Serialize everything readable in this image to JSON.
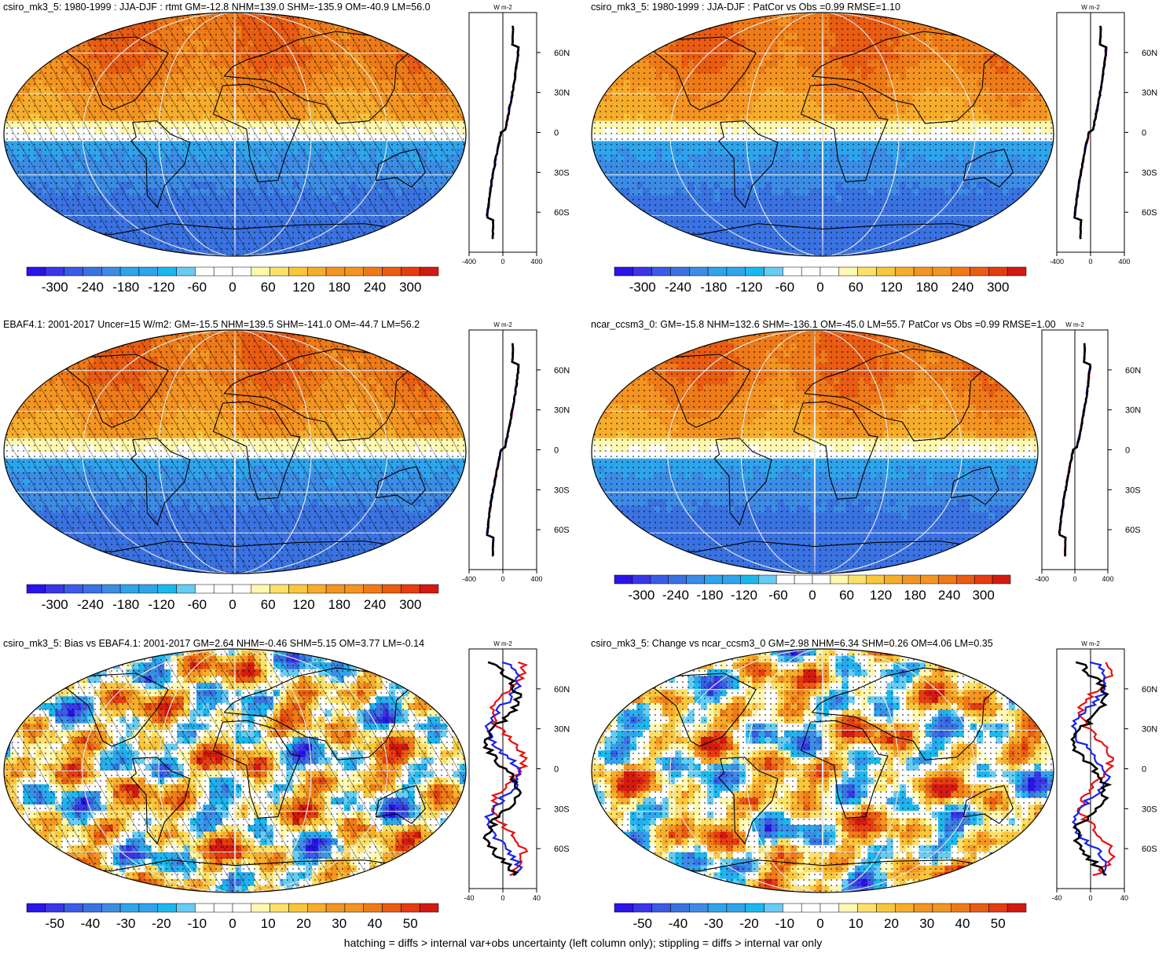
{
  "colors": {
    "scale": [
      "#2a14e8",
      "#3a36e8",
      "#3a5ae8",
      "#3a72e2",
      "#3c8ce6",
      "#2ea4ec",
      "#1ab8ee",
      "#66ccf4",
      "#ffffff",
      "#ffffff",
      "#fff8b0",
      "#fce06a",
      "#f9c63c",
      "#f7ad2c",
      "#f49421",
      "#ee7a18",
      "#e95c12",
      "#e53c10",
      "#d31a10"
    ],
    "hatch": "#000000",
    "grid": "#e8e8e8",
    "blue_line": "#1a22e6",
    "red_line": "#e81010",
    "black_line": "#000000"
  },
  "footnote": "hatching = diffs > internal var+obs uncertainty (left column only); stippling = diffs > internal var only",
  "chart_data": [
    {
      "id": "p1",
      "type": "heatmap",
      "title": "csiro_mk3_5: 1980-1999 : JJA-DJF : rtmt GM=-12.8 NHM=139.0 SHM=-135.9 OM=-40.9 LM=56.0",
      "colorbar_ticks": [
        "-300",
        "-240",
        "-180",
        "-120",
        "-60",
        "0",
        "60",
        "120",
        "180",
        "240",
        "300"
      ],
      "colorbar_range": [
        -300,
        300
      ],
      "zonal_units": "W m-2",
      "zonal_xticks": [
        "-400",
        "0",
        "400"
      ],
      "zonal_xlim": [
        -400,
        400
      ],
      "lat_ticks": [
        "60N",
        "30N",
        "0",
        "30S",
        "60S"
      ],
      "kind": "mean",
      "hatched": true
    },
    {
      "id": "p2",
      "type": "heatmap",
      "title": "csiro_mk3_5: 1980-1999 : JJA-DJF : PatCor vs Obs =0.99 RMSE=1.10",
      "colorbar_ticks": [
        "-300",
        "-240",
        "-180",
        "-120",
        "-60",
        "0",
        "60",
        "120",
        "180",
        "240",
        "300"
      ],
      "colorbar_range": [
        -300,
        300
      ],
      "zonal_units": "W m-2",
      "zonal_xticks": [
        "-400",
        "0",
        "400"
      ],
      "zonal_xlim": [
        -400,
        400
      ],
      "lat_ticks": [
        "60N",
        "30N",
        "0",
        "30S",
        "60S"
      ],
      "kind": "mean",
      "hatched": false
    },
    {
      "id": "p3",
      "type": "heatmap",
      "title": "EBAF4.1: 2001-2017 Uncer=15 W/m2: GM=-15.5 NHM=139.5 SHM=-141.0 OM=-44.7 LM=56.2",
      "colorbar_ticks": [
        "-300",
        "-240",
        "-180",
        "-120",
        "-60",
        "0",
        "60",
        "120",
        "180",
        "240",
        "300"
      ],
      "colorbar_range": [
        -300,
        300
      ],
      "zonal_units": "W m-2",
      "zonal_xticks": [
        "-400",
        "0",
        "400"
      ],
      "zonal_xlim": [
        -400,
        400
      ],
      "lat_ticks": [
        "60N",
        "30N",
        "0",
        "30S",
        "60S"
      ],
      "kind": "mean",
      "hatched": true
    },
    {
      "id": "p4",
      "type": "heatmap",
      "title": "ncar_ccsm3_0: GM=-15.8 NHM=132.6 SHM=-136.1 OM=-45.0 LM=55.7 PatCor vs Obs =0.99 RMSE=1.00",
      "colorbar_ticks": [
        "-300",
        "-240",
        "-180",
        "-120",
        "-60",
        "0",
        "60",
        "120",
        "180",
        "240",
        "300"
      ],
      "colorbar_range": [
        -300,
        300
      ],
      "zonal_units": "W m-2",
      "zonal_xticks": [
        "-400",
        "0",
        "400"
      ],
      "zonal_xlim": [
        -400,
        400
      ],
      "lat_ticks": [
        "60N",
        "30N",
        "0",
        "30S",
        "60S"
      ],
      "kind": "mean",
      "hatched": false
    },
    {
      "id": "p5",
      "type": "heatmap",
      "title": "csiro_mk3_5: Bias vs EBAF4.1: 2001-2017 GM=2.64 NHM=-0.46 SHM=5.15 OM=3.77 LM=-0.14",
      "colorbar_ticks": [
        "-50",
        "-40",
        "-30",
        "-20",
        "-10",
        "0",
        "10",
        "20",
        "30",
        "40",
        "50"
      ],
      "colorbar_range": [
        -50,
        50
      ],
      "zonal_units": "W m-2",
      "zonal_xticks": [
        "-40",
        "0",
        "40"
      ],
      "zonal_xlim": [
        -40,
        40
      ],
      "lat_ticks": [
        "60N",
        "30N",
        "0",
        "30S",
        "60S"
      ],
      "kind": "bias",
      "hatched": true
    },
    {
      "id": "p6",
      "type": "heatmap",
      "title": "csiro_mk3_5: Change vs ncar_ccsm3_0 GM=2.98 NHM=6.34 SHM=0.26 OM=4.06 LM=0.35",
      "colorbar_ticks": [
        "-50",
        "-40",
        "-30",
        "-20",
        "-10",
        "0",
        "10",
        "20",
        "30",
        "40",
        "50"
      ],
      "colorbar_range": [
        -50,
        50
      ],
      "zonal_units": "W m-2",
      "zonal_xticks": [
        "-40",
        "0",
        "40"
      ],
      "zonal_xlim": [
        -40,
        40
      ],
      "lat_ticks": [
        "60N",
        "30N",
        "0",
        "30S",
        "60S"
      ],
      "kind": "bias",
      "hatched": false
    }
  ]
}
